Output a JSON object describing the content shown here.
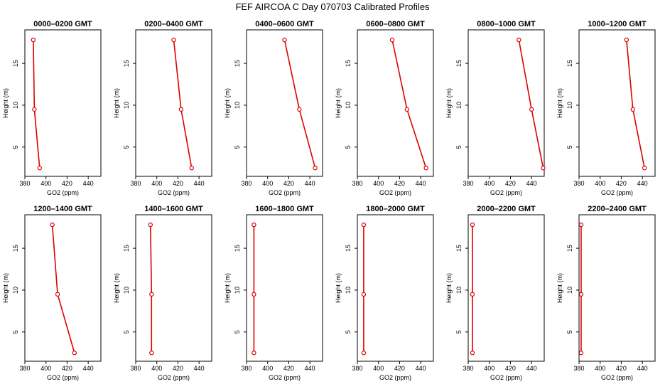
{
  "figure": {
    "title": "FEF AIRCOA C  Day 070703  Calibrated Profiles"
  },
  "chart_data": [
    {
      "type": "line",
      "title": "0000–0200 GMT",
      "xlabel": "GO2 (ppm)",
      "ylabel": "Height (m)",
      "xlim": [
        380,
        452
      ],
      "ylim": [
        1.5,
        19
      ],
      "xticks": [
        380,
        400,
        420,
        440
      ],
      "yticks": [
        5,
        10,
        15
      ],
      "x": [
        394,
        389,
        388
      ],
      "y": [
        2.5,
        9.5,
        17.8
      ],
      "color": "#dd0000"
    },
    {
      "type": "line",
      "title": "0200–0400 GMT",
      "xlabel": "GO2 (ppm)",
      "ylabel": "Height (m)",
      "xlim": [
        380,
        452
      ],
      "ylim": [
        1.5,
        19
      ],
      "xticks": [
        380,
        400,
        420,
        440
      ],
      "yticks": [
        5,
        10,
        15
      ],
      "x": [
        433,
        423,
        416
      ],
      "y": [
        2.5,
        9.5,
        17.8
      ],
      "color": "#dd0000"
    },
    {
      "type": "line",
      "title": "0400–0600 GMT",
      "xlabel": "GO2 (ppm)",
      "ylabel": "Height (m)",
      "xlim": [
        380,
        452
      ],
      "ylim": [
        1.5,
        19
      ],
      "xticks": [
        380,
        400,
        420,
        440
      ],
      "yticks": [
        5,
        10,
        15
      ],
      "x": [
        445,
        430,
        416
      ],
      "y": [
        2.5,
        9.5,
        17.8
      ],
      "color": "#dd0000"
    },
    {
      "type": "line",
      "title": "0600–0800 GMT",
      "xlabel": "GO2 (ppm)",
      "ylabel": "Height (m)",
      "xlim": [
        380,
        452
      ],
      "ylim": [
        1.5,
        19
      ],
      "xticks": [
        380,
        400,
        420,
        440
      ],
      "yticks": [
        5,
        10,
        15
      ],
      "x": [
        445,
        427,
        413
      ],
      "y": [
        2.5,
        9.5,
        17.8
      ],
      "color": "#dd0000"
    },
    {
      "type": "line",
      "title": "0800–1000 GMT",
      "xlabel": "GO2 (ppm)",
      "ylabel": "Height (m)",
      "xlim": [
        380,
        452
      ],
      "ylim": [
        1.5,
        19
      ],
      "xticks": [
        380,
        400,
        420,
        440
      ],
      "yticks": [
        5,
        10,
        15
      ],
      "x": [
        451,
        440,
        428
      ],
      "y": [
        2.5,
        9.5,
        17.8
      ],
      "color": "#dd0000"
    },
    {
      "type": "line",
      "title": "1000–1200 GMT",
      "xlabel": "GO2 (ppm)",
      "ylabel": "Height (m)",
      "xlim": [
        380,
        452
      ],
      "ylim": [
        1.5,
        19
      ],
      "xticks": [
        380,
        400,
        420,
        440
      ],
      "yticks": [
        5,
        10,
        15
      ],
      "x": [
        442,
        431,
        425
      ],
      "y": [
        2.5,
        9.5,
        17.8
      ],
      "color": "#dd0000"
    },
    {
      "type": "line",
      "title": "1200–1400 GMT",
      "xlabel": "GO2 (ppm)",
      "ylabel": "Height (m)",
      "xlim": [
        380,
        452
      ],
      "ylim": [
        1.5,
        19
      ],
      "xticks": [
        380,
        400,
        420,
        440
      ],
      "yticks": [
        5,
        10,
        15
      ],
      "x": [
        427,
        411,
        406
      ],
      "y": [
        2.5,
        9.5,
        17.8
      ],
      "color": "#dd0000"
    },
    {
      "type": "line",
      "title": "1400–1600 GMT",
      "xlabel": "GO2 (ppm)",
      "ylabel": "Height (m)",
      "xlim": [
        380,
        452
      ],
      "ylim": [
        1.5,
        19
      ],
      "xticks": [
        380,
        400,
        420,
        440
      ],
      "yticks": [
        5,
        10,
        15
      ],
      "x": [
        395,
        395,
        394
      ],
      "y": [
        2.5,
        9.5,
        17.8
      ],
      "color": "#dd0000"
    },
    {
      "type": "line",
      "title": "1600–1800 GMT",
      "xlabel": "GO2 (ppm)",
      "ylabel": "Height (m)",
      "xlim": [
        380,
        452
      ],
      "ylim": [
        1.5,
        19
      ],
      "xticks": [
        380,
        400,
        420,
        440
      ],
      "yticks": [
        5,
        10,
        15
      ],
      "x": [
        387,
        387,
        387
      ],
      "y": [
        2.5,
        9.5,
        17.8
      ],
      "color": "#dd0000"
    },
    {
      "type": "line",
      "title": "1800–2000 GMT",
      "xlabel": "GO2 (ppm)",
      "ylabel": "Height (m)",
      "xlim": [
        380,
        452
      ],
      "ylim": [
        1.5,
        19
      ],
      "xticks": [
        380,
        400,
        420,
        440
      ],
      "yticks": [
        5,
        10,
        15
      ],
      "x": [
        386,
        386,
        386
      ],
      "y": [
        2.5,
        9.5,
        17.8
      ],
      "color": "#dd0000"
    },
    {
      "type": "line",
      "title": "2000–2200 GMT",
      "xlabel": "GO2 (ppm)",
      "ylabel": "Height (m)",
      "xlim": [
        380,
        452
      ],
      "ylim": [
        1.5,
        19
      ],
      "xticks": [
        380,
        400,
        420,
        440
      ],
      "yticks": [
        5,
        10,
        15
      ],
      "x": [
        384,
        384,
        384
      ],
      "y": [
        2.5,
        9.5,
        17.8
      ],
      "color": "#dd0000"
    },
    {
      "type": "line",
      "title": "2200–2400 GMT",
      "xlabel": "GO2 (ppm)",
      "ylabel": "Height (m)",
      "xlim": [
        380,
        452
      ],
      "ylim": [
        1.5,
        19
      ],
      "xticks": [
        380,
        400,
        420,
        440
      ],
      "yticks": [
        5,
        10,
        15
      ],
      "x": [
        382,
        382,
        382
      ],
      "y": [
        2.5,
        9.5,
        17.8
      ],
      "color": "#dd0000"
    }
  ]
}
